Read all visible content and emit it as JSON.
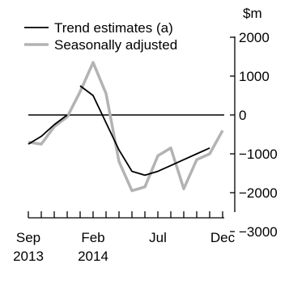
{
  "chart_data": {
    "type": "line",
    "title": "",
    "xlabel": "",
    "ylabel": "$m",
    "ylim": [
      -3000,
      2000
    ],
    "yticks": [
      2000,
      1000,
      0,
      -1000,
      -2000,
      -3000
    ],
    "ytick_labels": [
      "2000",
      "1000",
      "0",
      "−1000",
      "−2000",
      "−3000"
    ],
    "x": [
      "Sep 2013",
      "Oct 2013",
      "Nov 2013",
      "Dec 2013",
      "Jan 2014",
      "Feb 2014",
      "Mar 2014",
      "Apr 2014",
      "May 2014",
      "Jun 2014",
      "Jul 2014",
      "Aug 2014",
      "Sep 2014",
      "Oct 2014",
      "Nov 2014",
      "Dec 2014"
    ],
    "xtick_labels": [
      {
        "index": 0,
        "line1": "Sep",
        "line2": "2013"
      },
      {
        "index": 5,
        "line1": "Feb",
        "line2": "2014"
      },
      {
        "index": 10,
        "line1": "Jul",
        "line2": ""
      },
      {
        "index": 15,
        "line1": "Dec",
        "line2": ""
      }
    ],
    "zero_line": true,
    "grid": false,
    "legend_position": "top-left",
    "series": [
      {
        "name": "Trend estimates (a)",
        "color": "#000000",
        "segments": [
          {
            "start": 0,
            "values": [
              -750,
              -550,
              -250,
              0
            ]
          },
          {
            "start": 4,
            "values": [
              750,
              500,
              -200,
              -900,
              -1450,
              -1550,
              -1450,
              -1300,
              -1150,
              -1000,
              -850
            ]
          }
        ]
      },
      {
        "name": "Seasonally adjusted",
        "color": "#b3b3b3",
        "segments": [
          {
            "start": 0,
            "values": [
              -700,
              -750,
              -300,
              -50,
              600,
              1350,
              550,
              -1200,
              -1950,
              -1850,
              -1050,
              -850,
              -1900,
              -1150,
              -1000,
              -400
            ]
          }
        ]
      }
    ]
  }
}
